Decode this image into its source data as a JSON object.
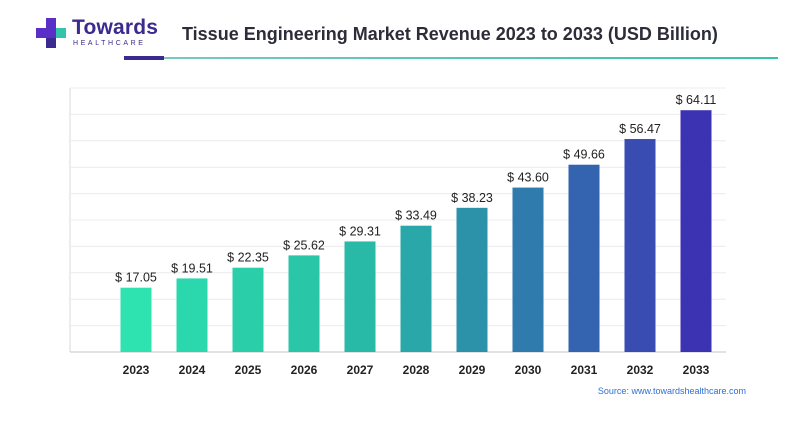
{
  "brand": {
    "name": "Towards",
    "sub": "HEALTHCARE",
    "colors": {
      "primary": "#3b2a8f",
      "accent": "#36c4a8",
      "plus": "#5a2fc8"
    }
  },
  "header": {
    "title": "Tissue Engineering Market Revenue 2023 to 2033 (USD Billion)"
  },
  "chart_data": {
    "type": "bar",
    "title": "Tissue Engineering Market Revenue 2023 to 2033 (USD Billion)",
    "categories": [
      "2023",
      "2024",
      "2025",
      "2026",
      "2027",
      "2028",
      "2029",
      "2030",
      "2031",
      "2032",
      "2033"
    ],
    "values": [
      17.05,
      19.51,
      22.35,
      25.62,
      29.31,
      33.49,
      38.23,
      43.6,
      49.66,
      56.47,
      64.11
    ],
    "value_labels": [
      "$ 17.05",
      "$ 19.51",
      "$ 22.35",
      "$ 25.62",
      "$ 29.31",
      "$ 33.49",
      "$ 38.23",
      "$ 43.60",
      "$ 49.66",
      "$ 56.47",
      "$ 64.11"
    ],
    "xlabel": "",
    "ylabel": "",
    "ylim": [
      0,
      70
    ],
    "grid": true,
    "legend": "none",
    "bar_colors": [
      "#2ee3b0",
      "#2bd8ad",
      "#2acfaa",
      "#29c6a8",
      "#28b9a7",
      "#2aa7a8",
      "#2c92aa",
      "#2f7bad",
      "#3463af",
      "#384cb1",
      "#3b33b2"
    ]
  },
  "footer": {
    "source": "Source: www.towardshealthcare.com"
  }
}
